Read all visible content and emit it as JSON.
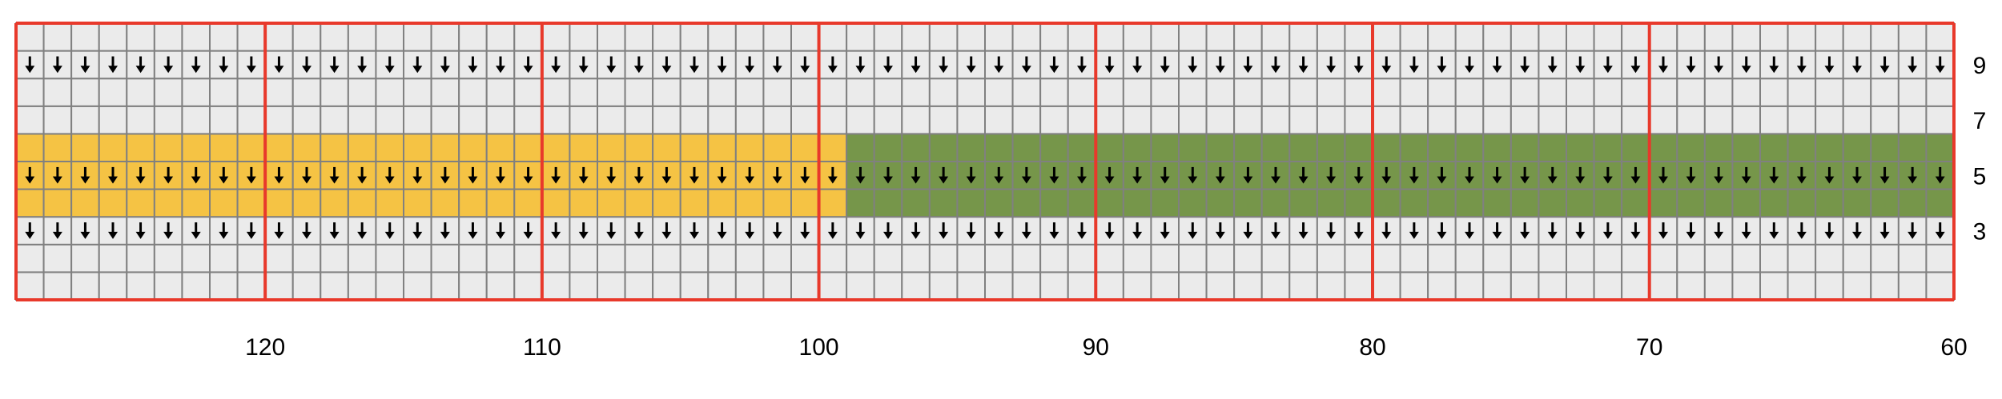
{
  "chart_data": {
    "type": "stitch-chart",
    "columns_from": 129,
    "columns_to": 60,
    "rows": 10,
    "column_labels": [
      "120",
      "110",
      "100",
      "90",
      "80",
      "70",
      "60"
    ],
    "row_labels": [
      "9",
      "7",
      "5",
      "3"
    ],
    "arrow_rows": [
      3,
      5,
      9
    ],
    "colored_bands": [
      {
        "rows": [
          4,
          6
        ],
        "columns": [
          129,
          100
        ],
        "color": "#F5C344"
      },
      {
        "rows": [
          4,
          6
        ],
        "columns": [
          99,
          60
        ],
        "color": "#76964A"
      }
    ],
    "colors": {
      "background_cell": "#EBEBEB",
      "cell_border": "#808080",
      "major_line": "#E8392B",
      "arrow": "#000000"
    },
    "arrow_glyph": "↓"
  }
}
